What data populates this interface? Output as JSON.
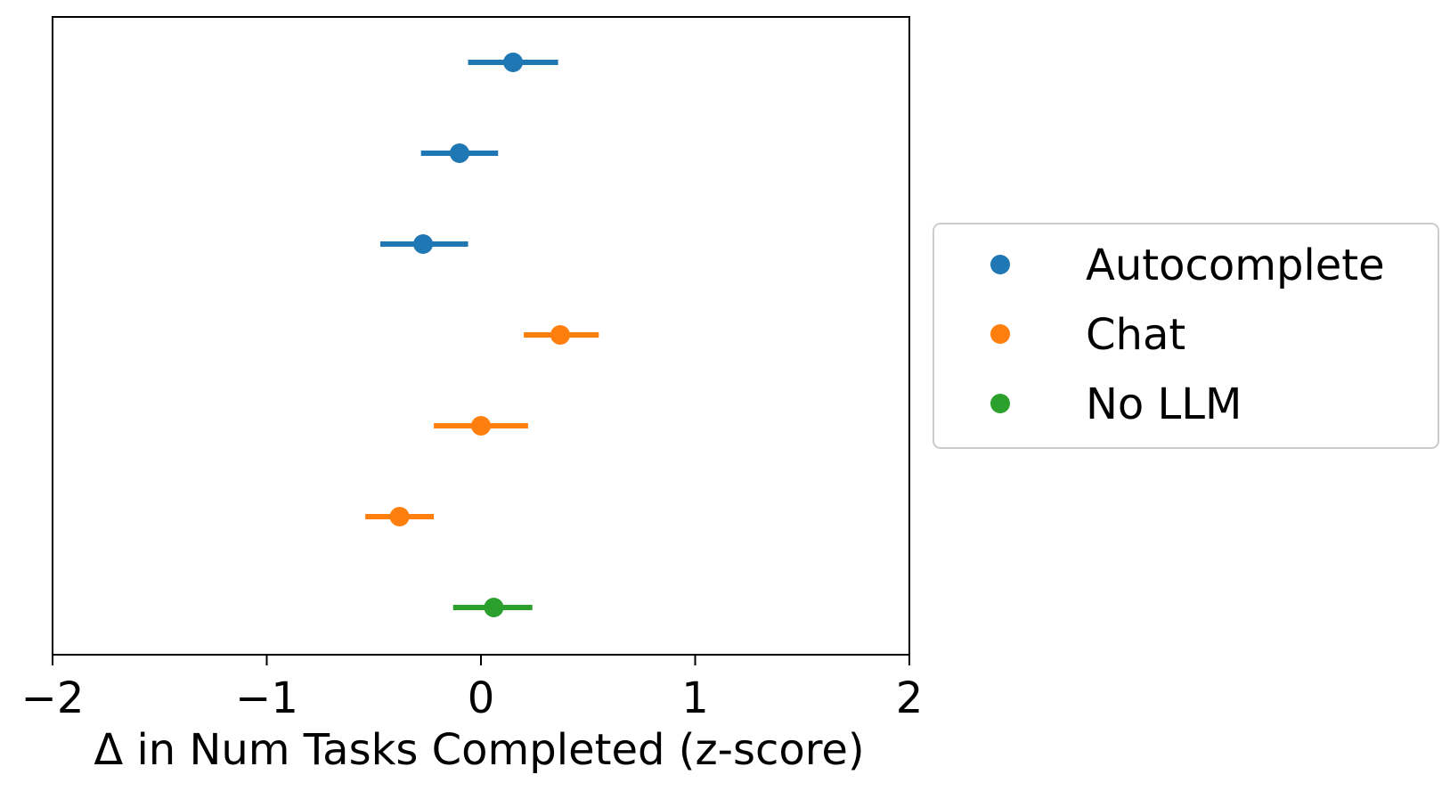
{
  "chart_data": {
    "type": "scatter",
    "title": "",
    "xlabel": "Δ in Num Tasks Completed (z-score)",
    "ylabel": "",
    "xlim": [
      -2,
      2
    ],
    "xticks": [
      -2,
      -1,
      0,
      1,
      2
    ],
    "xtick_labels": [
      "−2",
      "−1",
      "0",
      "1",
      "2"
    ],
    "yticks_visible": false,
    "grid": false,
    "legend_position": "right-outside",
    "error_bars": "horizontal",
    "series": [
      {
        "name": "Autocomplete",
        "color": "#1f77b4",
        "points": [
          {
            "x": 0.15,
            "low": -0.06,
            "high": 0.36
          },
          {
            "x": -0.1,
            "low": -0.28,
            "high": 0.08
          },
          {
            "x": -0.27,
            "low": -0.47,
            "high": -0.06
          }
        ]
      },
      {
        "name": "Chat",
        "color": "#ff7f0e",
        "points": [
          {
            "x": 0.37,
            "low": 0.2,
            "high": 0.55
          },
          {
            "x": 0.0,
            "low": -0.22,
            "high": 0.22
          },
          {
            "x": -0.38,
            "low": -0.54,
            "high": -0.22
          }
        ]
      },
      {
        "name": "No LLM",
        "color": "#2ca02c",
        "points": [
          {
            "x": 0.06,
            "low": -0.13,
            "high": 0.24
          }
        ]
      }
    ]
  }
}
